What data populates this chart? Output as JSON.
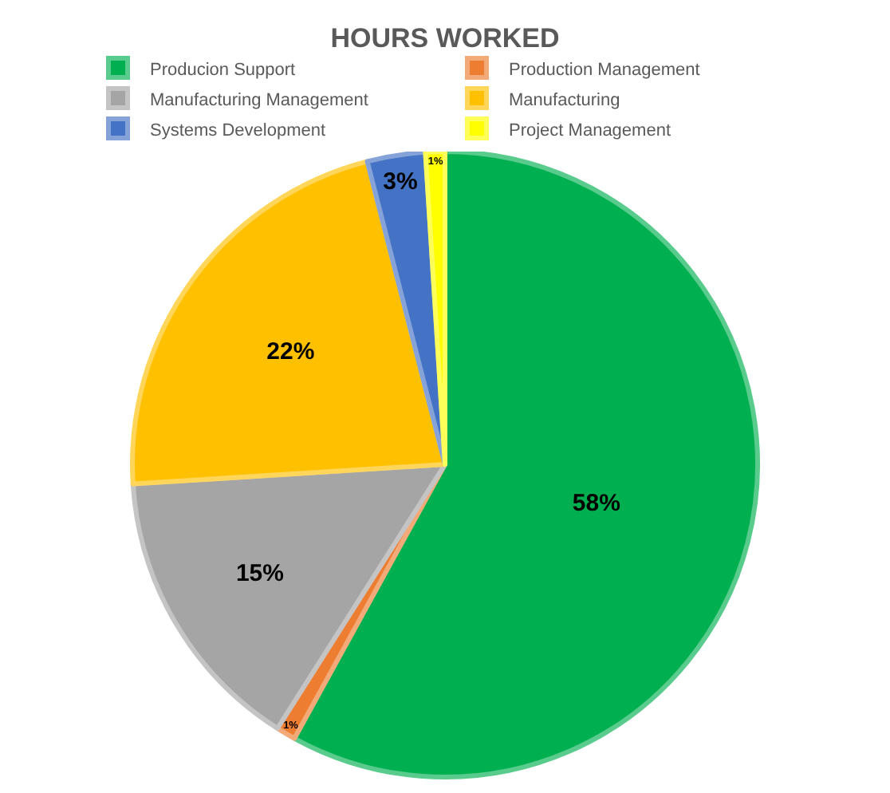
{
  "chart_data": {
    "type": "pie",
    "title": "HOURS WORKED",
    "categories": [
      "Producion Support",
      "Production Management",
      "Manufacturing Management",
      "Manufacturing",
      "Systems Development",
      "Project Management"
    ],
    "values": [
      58,
      1,
      15,
      22,
      3,
      1
    ],
    "value_labels": [
      "58%",
      "1%",
      "15%",
      "22%",
      "3%",
      "1%"
    ],
    "colors": [
      "#00b050",
      "#ed7d31",
      "#a5a5a5",
      "#ffc000",
      "#4472c4",
      "#ffff00"
    ],
    "legend": "top"
  }
}
